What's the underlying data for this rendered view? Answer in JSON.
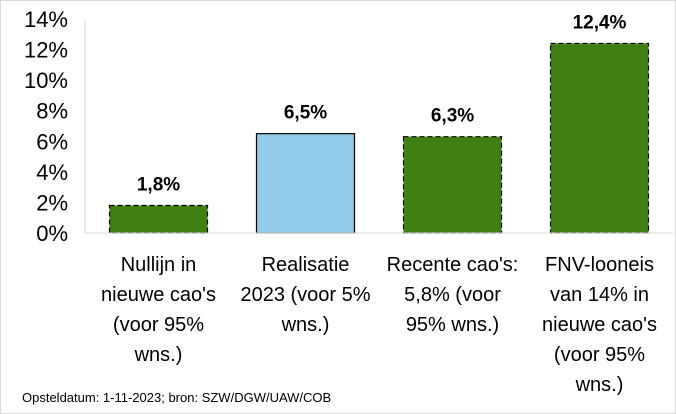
{
  "chart_data": {
    "type": "bar",
    "categories": [
      [
        "Nullijn in",
        "nieuwe cao's",
        "(voor 95%",
        "wns.)"
      ],
      [
        "Realisatie",
        "2023 (voor 5%",
        "wns.)"
      ],
      [
        "Recente cao's:",
        "5,8% (voor",
        "95% wns.)"
      ],
      [
        "FNV-looneis",
        "van 14% in",
        "nieuwe cao's",
        "(voor 95%",
        "wns.)"
      ]
    ],
    "values": [
      1.8,
      6.5,
      6.3,
      12.4
    ],
    "data_labels": [
      "1,8%",
      "6,5%",
      "6,3%",
      "12,4%"
    ],
    "bar_colors": [
      "#3f7f14",
      "#92cbe7",
      "#3f7f14",
      "#3f7f14"
    ],
    "bar_dashed": [
      true,
      false,
      true,
      true
    ],
    "yticks": [
      "0%",
      "2%",
      "4%",
      "6%",
      "8%",
      "10%",
      "12%",
      "14%"
    ],
    "ylim": [
      0,
      14
    ],
    "grid": false,
    "legend": "none"
  },
  "footer": {
    "source": "Opsteldatum: 1-11-2023; bron: SZW/DGW/UAW/COB"
  }
}
